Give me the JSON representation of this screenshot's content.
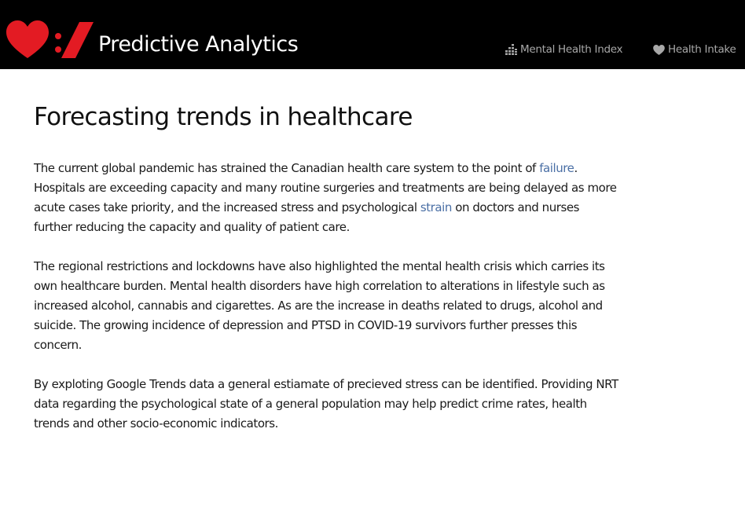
{
  "navbar": {
    "brand": "Predictive Analytics",
    "logo_icon": "heart-slash-logo",
    "brand_color": "#e31b23",
    "links": [
      {
        "label": "Mental Health Index",
        "icon": "bar-chart-icon"
      },
      {
        "label": "Health Intake",
        "icon": "heart-icon"
      }
    ]
  },
  "main": {
    "title": "Forecasting trends in healthcare",
    "p1": {
      "t1": "The current global pandemic has strained the Canadian health care system to the point of ",
      "link1": "failure",
      "t2": ". Hospitals are exceeding capacity and many routine surgeries and treatments are being delayed as more acute cases take priority, and the increased stress and psychological ",
      "link2": "strain",
      "t3": " on doctors and nurses further reducing the capacity and quality of patient care."
    },
    "p2": "The regional restrictions and lockdowns have also highlighted the mental health crisis which carries its own healthcare burden. Mental health disorders have high correlation to alterations in lifestyle such as increased alcohol, cannabis and cigarettes. As are the increase in deaths related to drugs, alcohol and suicide. The growing incidence of depression and PTSD in COVID-19 survivors further presses this concern.",
    "p3": "By exploting Google Trends data a general estiamate of precieved stress can be identified. Providing NRT data regarding the psychological state of a general population may help predict crime rates, health trends and other socio-economic indicators.",
    "link_color": "#4a6fa5"
  }
}
